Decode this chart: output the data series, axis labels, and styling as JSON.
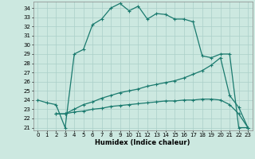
{
  "xlabel": "Humidex (Indice chaleur)",
  "bg_color": "#cce8e0",
  "line_color": "#1a7a6e",
  "grid_color": "#aacfc8",
  "xlim": [
    -0.5,
    23.5
  ],
  "ylim": [
    20.7,
    34.7
  ],
  "yticks": [
    21,
    22,
    23,
    24,
    25,
    26,
    27,
    28,
    29,
    30,
    31,
    32,
    33,
    34
  ],
  "xticks": [
    0,
    1,
    2,
    3,
    4,
    5,
    6,
    7,
    8,
    9,
    10,
    11,
    12,
    13,
    14,
    15,
    16,
    17,
    18,
    19,
    20,
    21,
    22,
    23
  ],
  "line1_x": [
    0,
    1,
    2,
    3,
    4,
    5,
    6,
    7,
    8,
    9,
    10,
    11,
    12,
    13,
    14,
    15,
    16,
    17,
    18,
    19,
    20,
    21,
    22,
    23
  ],
  "line1_y": [
    24.0,
    23.7,
    23.5,
    21.0,
    29.0,
    29.5,
    32.2,
    32.8,
    34.0,
    34.5,
    33.7,
    34.2,
    32.8,
    33.4,
    33.3,
    32.8,
    32.8,
    32.5,
    28.8,
    28.6,
    29.0,
    29.0,
    21.0,
    21.0
  ],
  "line2_x": [
    2,
    3,
    4,
    5,
    6,
    7,
    8,
    9,
    10,
    11,
    12,
    13,
    14,
    15,
    16,
    17,
    18,
    19,
    20,
    21,
    22,
    23
  ],
  "line2_y": [
    22.5,
    22.5,
    23.0,
    23.5,
    23.8,
    24.2,
    24.5,
    24.8,
    25.0,
    25.2,
    25.5,
    25.7,
    25.9,
    26.1,
    26.4,
    26.8,
    27.2,
    27.8,
    28.6,
    24.5,
    23.2,
    21.0
  ],
  "line3_x": [
    2,
    3,
    4,
    5,
    6,
    7,
    8,
    9,
    10,
    11,
    12,
    13,
    14,
    15,
    16,
    17,
    18,
    19,
    20,
    21,
    22,
    23
  ],
  "line3_y": [
    22.5,
    22.5,
    22.7,
    22.8,
    23.0,
    23.1,
    23.3,
    23.4,
    23.5,
    23.6,
    23.7,
    23.8,
    23.9,
    23.9,
    24.0,
    24.0,
    24.1,
    24.1,
    24.0,
    23.5,
    22.5,
    21.0
  ]
}
